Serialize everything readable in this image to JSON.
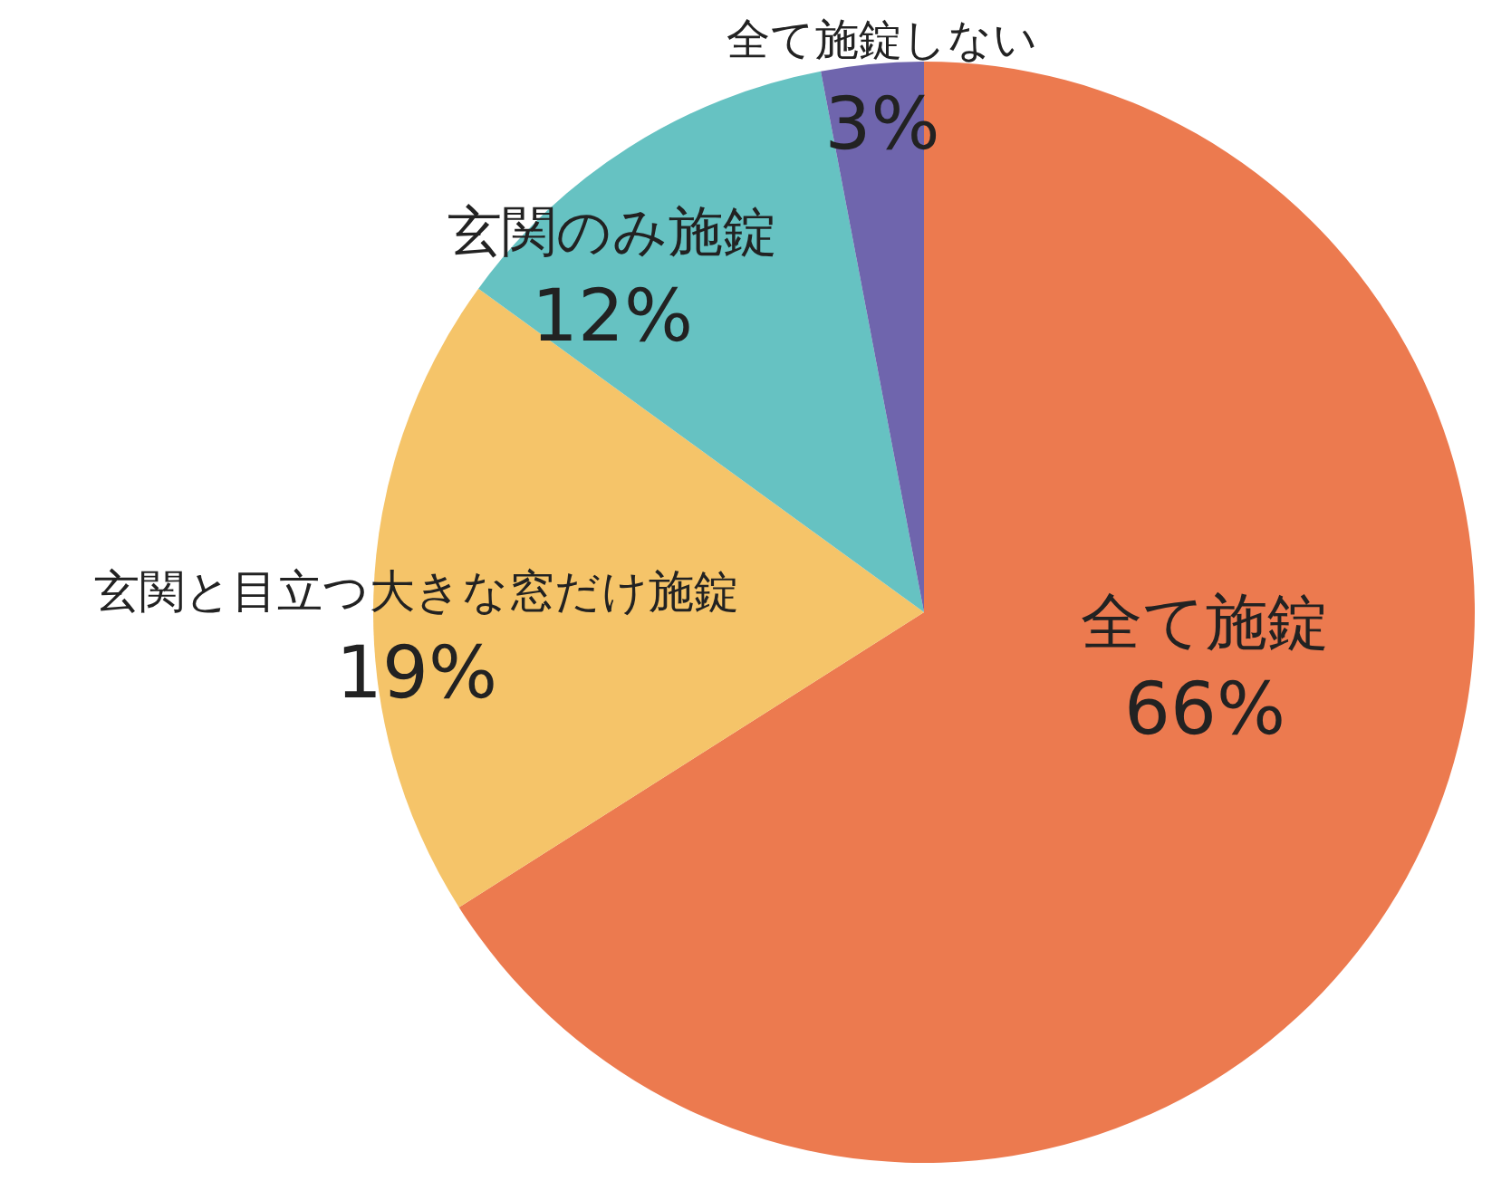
{
  "chart_data": {
    "type": "pie",
    "categories": [
      "全て施錠",
      "玄関と目立つ大きな窓だけ施錠",
      "玄関のみ施錠",
      "全て施錠しない"
    ],
    "values": [
      66,
      19,
      12,
      3
    ],
    "value_labels": [
      "66%",
      "19%",
      "12%",
      "3%"
    ],
    "colors": [
      "#ec7a4f",
      "#f5c469",
      "#66c2c2",
      "#6f65ad"
    ]
  }
}
